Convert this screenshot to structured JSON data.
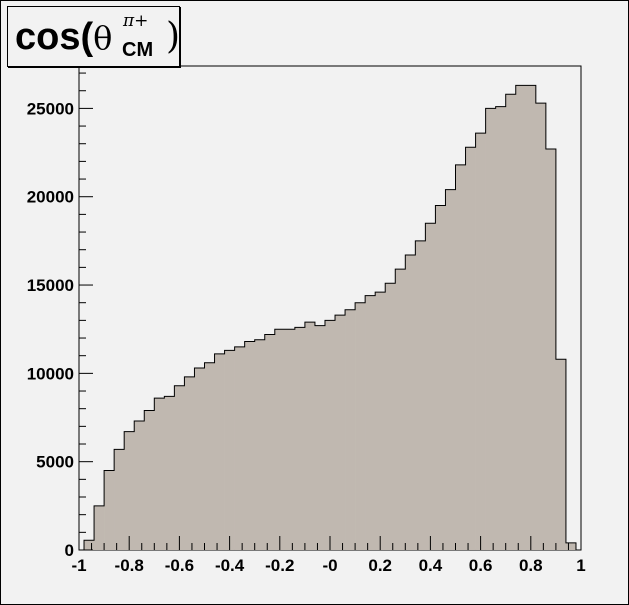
{
  "chart_data": {
    "type": "bar",
    "title": {
      "prefix": "cos(",
      "symbol": "θ",
      "superscript": "π+",
      "subscript": "CM",
      "suffix": ")"
    },
    "xlabel": "",
    "ylabel": "",
    "xlim": [
      -1,
      1
    ],
    "ylim": [
      0,
      27400
    ],
    "bin_edges_start": -0.98,
    "bin_width": 0.04,
    "x_ticks": [
      -1,
      -0.8,
      -0.6,
      -0.4,
      -0.2,
      0,
      0.2,
      0.4,
      0.6,
      0.8,
      1
    ],
    "x_tick_labels": [
      "-1",
      "-0.8",
      "-0.6",
      "-0.4",
      "-0.2",
      "-0",
      "0.2",
      "0.4",
      "0.6",
      "0.8",
      "1"
    ],
    "y_ticks": [
      0,
      5000,
      10000,
      15000,
      20000,
      25000
    ],
    "y_tick_labels": [
      "0",
      "5000",
      "10000",
      "15000",
      "20000",
      "25000"
    ],
    "fill_color": "#c0b8b0",
    "line_color": "#000000",
    "background_color": "#f2f2f2",
    "grid": false,
    "bins": [
      {
        "x": -0.98,
        "count": 550
      },
      {
        "x": -0.94,
        "count": 2500
      },
      {
        "x": -0.9,
        "count": 4500
      },
      {
        "x": -0.86,
        "count": 5700
      },
      {
        "x": -0.82,
        "count": 6700
      },
      {
        "x": -0.78,
        "count": 7300
      },
      {
        "x": -0.74,
        "count": 7900
      },
      {
        "x": -0.7,
        "count": 8600
      },
      {
        "x": -0.66,
        "count": 8700
      },
      {
        "x": -0.62,
        "count": 9300
      },
      {
        "x": -0.58,
        "count": 9800
      },
      {
        "x": -0.54,
        "count": 10300
      },
      {
        "x": -0.5,
        "count": 10600
      },
      {
        "x": -0.46,
        "count": 11100
      },
      {
        "x": -0.42,
        "count": 11300
      },
      {
        "x": -0.38,
        "count": 11500
      },
      {
        "x": -0.34,
        "count": 11800
      },
      {
        "x": -0.3,
        "count": 11900
      },
      {
        "x": -0.26,
        "count": 12200
      },
      {
        "x": -0.22,
        "count": 12500
      },
      {
        "x": -0.18,
        "count": 12500
      },
      {
        "x": -0.14,
        "count": 12600
      },
      {
        "x": -0.1,
        "count": 12900
      },
      {
        "x": -0.06,
        "count": 12700
      },
      {
        "x": -0.02,
        "count": 13000
      },
      {
        "x": 0.02,
        "count": 13300
      },
      {
        "x": 0.06,
        "count": 13600
      },
      {
        "x": 0.1,
        "count": 14000
      },
      {
        "x": 0.14,
        "count": 14400
      },
      {
        "x": 0.18,
        "count": 14600
      },
      {
        "x": 0.22,
        "count": 15100
      },
      {
        "x": 0.26,
        "count": 15900
      },
      {
        "x": 0.3,
        "count": 16700
      },
      {
        "x": 0.34,
        "count": 17500
      },
      {
        "x": 0.38,
        "count": 18500
      },
      {
        "x": 0.42,
        "count": 19500
      },
      {
        "x": 0.46,
        "count": 20400
      },
      {
        "x": 0.5,
        "count": 21800
      },
      {
        "x": 0.54,
        "count": 22800
      },
      {
        "x": 0.58,
        "count": 23600
      },
      {
        "x": 0.62,
        "count": 25000
      },
      {
        "x": 0.66,
        "count": 25100
      },
      {
        "x": 0.7,
        "count": 25800
      },
      {
        "x": 0.74,
        "count": 26300
      },
      {
        "x": 0.78,
        "count": 26300
      },
      {
        "x": 0.82,
        "count": 25300
      },
      {
        "x": 0.86,
        "count": 22700
      },
      {
        "x": 0.9,
        "count": 10800
      },
      {
        "x": 0.94,
        "count": 400
      }
    ]
  }
}
